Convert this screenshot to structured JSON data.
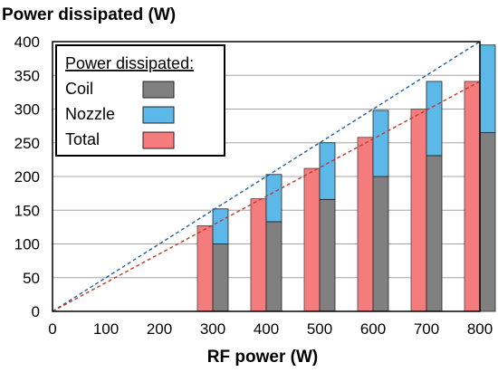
{
  "chart_data": {
    "type": "bar",
    "title": "",
    "ylabel": "Power dissipated (W)",
    "xlabel": "RF power (W)",
    "xlim": [
      0,
      800
    ],
    "ylim": [
      0,
      400
    ],
    "x_ticks": [
      "0",
      "100",
      "200",
      "300",
      "400",
      "500",
      "600",
      "700",
      "800"
    ],
    "y_ticks": [
      "0",
      "50",
      "100",
      "150",
      "200",
      "250",
      "300",
      "350",
      "400"
    ],
    "grid": "horizontal",
    "legend_title": "Power dissipated:",
    "legend_position": "top-left",
    "categories": [
      300,
      400,
      500,
      600,
      700,
      800
    ],
    "series": [
      {
        "name": "Coil",
        "color": "#808080",
        "values": [
          100,
          133,
          166,
          200,
          231,
          265
        ]
      },
      {
        "name": "Nozzle",
        "color": "#5bb8e8",
        "values": [
          52,
          70,
          84,
          98,
          110,
          130
        ]
      },
      {
        "name": "Total",
        "color": "#f47c7c",
        "values": [
          127,
          167,
          212,
          258,
          300,
          341
        ]
      }
    ],
    "trend_lines": [
      {
        "series": "Coil + Nozzle",
        "color": "#1f5fa8",
        "style": "dashed",
        "points": [
          [
            0,
            0
          ],
          [
            800,
            400
          ]
        ]
      },
      {
        "series": "Total",
        "color": "#c0392b",
        "style": "dashed",
        "points": [
          [
            0,
            0
          ],
          [
            800,
            341
          ]
        ]
      }
    ]
  }
}
